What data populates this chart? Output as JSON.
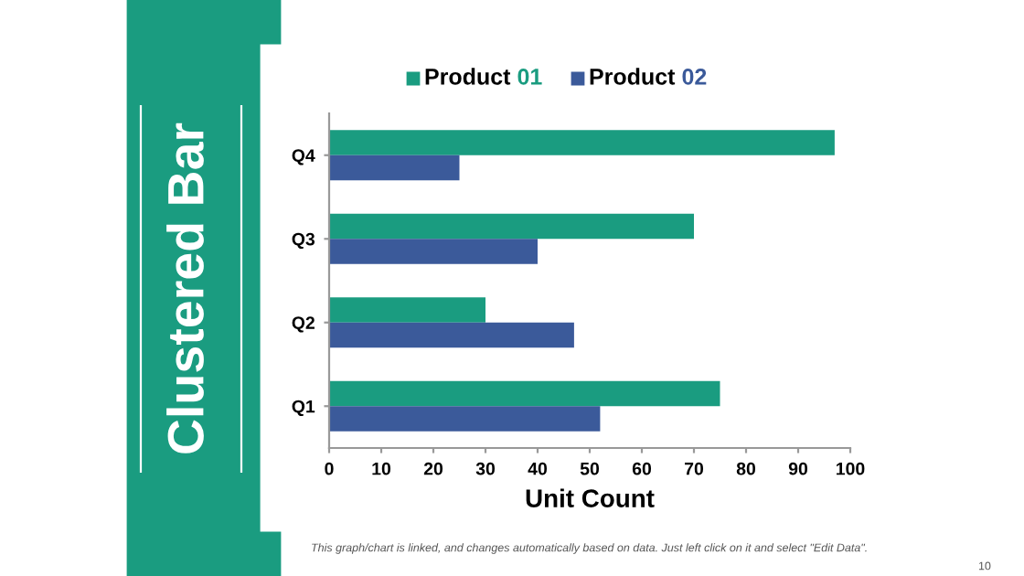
{
  "chart_data": {
    "type": "bar",
    "orientation": "horizontal",
    "title": "Clustered Bar",
    "xlabel": "Unit Count",
    "categories": [
      "Q4",
      "Q3",
      "Q2",
      "Q1"
    ],
    "series": [
      {
        "name": "Product 01",
        "color": "#1a9c80",
        "values": [
          97,
          70,
          30,
          75
        ]
      },
      {
        "name": "Product 02",
        "color": "#3b5a9a",
        "values": [
          25,
          40,
          47,
          52
        ]
      }
    ],
    "xlim": [
      0,
      100
    ],
    "xticks": [
      0,
      10,
      20,
      30,
      40,
      50,
      60,
      70,
      80,
      90,
      100
    ],
    "legend": "top",
    "annotations": [
      "This graph/chart is linked, and changes automatically based on data. Just left click on it and select \"Edit Data\".",
      "10"
    ]
  }
}
